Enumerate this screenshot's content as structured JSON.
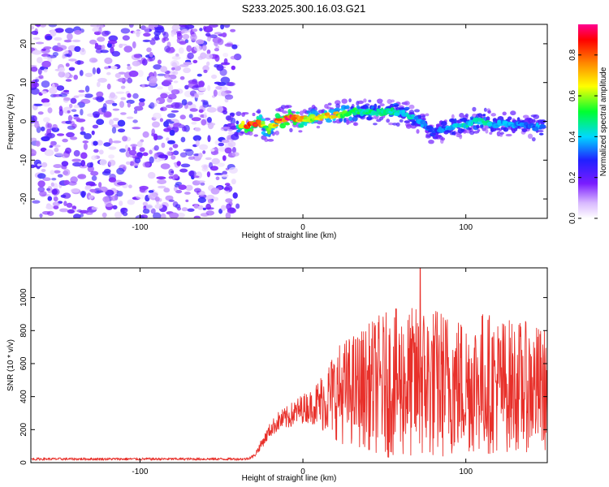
{
  "title": "S233.2025.300.16.03.G21",
  "colors": {
    "snr_line": "#e8302a",
    "axis": "#000000",
    "background": "#ffffff"
  },
  "chart_data": [
    {
      "type": "heatmap",
      "name": "spectrogram",
      "xlabel": "Height of straight line (km)",
      "ylabel": "Frequency (Hz)",
      "xlim": [
        -167,
        150
      ],
      "ylim": [
        -25,
        25
      ],
      "xticks": [
        -100,
        0,
        100
      ],
      "yticks": [
        -20,
        -10,
        0,
        10,
        20
      ],
      "colorbar": {
        "label": "Normalized spectral amplitude",
        "range": [
          0,
          0.95
        ],
        "ticks": [
          0.0,
          0.2,
          0.4,
          0.6,
          0.8
        ],
        "colormap": "rainbow (white-violet-blue-cyan-green-yellow-orange-red-magenta)"
      },
      "noise_region_x": [
        -167,
        -40
      ],
      "noise_amplitude": 0.15,
      "signal_ridge": {
        "x": [
          -40,
          -35,
          -30,
          -25,
          -22,
          -20,
          -15,
          -10,
          -5,
          0,
          5,
          10,
          15,
          20,
          25,
          30,
          35,
          40,
          45,
          50,
          55,
          60,
          65,
          70,
          75,
          78,
          80,
          85,
          90,
          95,
          100,
          105,
          110,
          115,
          120,
          125,
          130,
          135,
          140,
          145,
          148
        ],
        "y": [
          -1,
          -1,
          -0.5,
          -0.5,
          -2.5,
          -1.8,
          0,
          1,
          0.8,
          0.5,
          0.8,
          1.2,
          1.5,
          1.8,
          2,
          2.3,
          2.5,
          2.5,
          2.3,
          2.4,
          2.5,
          2.2,
          1.5,
          0.5,
          -1,
          -2,
          -3,
          -2,
          -1.5,
          -1.5,
          -1,
          0,
          0,
          -0.3,
          -0.8,
          -0.5,
          -0.8,
          -1,
          -1.5,
          -1.5,
          -1.5
        ],
        "peak_amplitude": [
          0.45,
          0.9,
          0.95,
          0.75,
          0.55,
          0.6,
          0.85,
          0.95,
          0.9,
          0.75,
          0.65,
          0.7,
          0.75,
          0.7,
          0.6,
          0.55,
          0.5,
          0.5,
          0.5,
          0.55,
          0.5,
          0.45,
          0.45,
          0.4,
          0.35,
          0.3,
          0.3,
          0.35,
          0.4,
          0.45,
          0.45,
          0.45,
          0.5,
          0.45,
          0.4,
          0.4,
          0.4,
          0.35,
          0.35,
          0.4,
          0.4
        ]
      }
    },
    {
      "type": "line",
      "name": "snr",
      "xlabel": "Height of straight line (km)",
      "ylabel": "SNR (10 * v/v)",
      "xlim": [
        -167,
        150
      ],
      "ylim": [
        0,
        1180
      ],
      "xticks": [
        -100,
        0,
        100
      ],
      "yticks": [
        0,
        200,
        400,
        600,
        800,
        1000
      ],
      "series": [
        {
          "name": "SNR",
          "x": [
            -167,
            -150,
            -130,
            -110,
            -90,
            -70,
            -50,
            -35,
            -30,
            -25,
            -20,
            -15,
            -10,
            -5,
            0,
            5,
            10,
            15,
            20,
            25,
            30,
            35,
            40,
            45,
            50,
            55,
            60,
            65,
            70,
            75,
            80,
            85,
            90,
            95,
            100,
            105,
            110,
            115,
            120,
            125,
            130,
            135,
            140,
            145,
            150
          ],
          "y_mean": [
            22,
            22,
            22,
            22,
            22,
            22,
            22,
            22,
            40,
            120,
            200,
            250,
            270,
            300,
            330,
            340,
            360,
            390,
            420,
            430,
            440,
            450,
            460,
            470,
            470,
            480,
            480,
            480,
            480,
            490,
            480,
            480,
            480,
            470,
            470,
            480,
            490,
            480,
            470,
            470,
            470,
            460,
            460,
            450,
            440
          ],
          "y_spread": [
            8,
            8,
            8,
            8,
            8,
            8,
            8,
            8,
            12,
            30,
            45,
            60,
            70,
            80,
            90,
            100,
            160,
            220,
            280,
            320,
            340,
            360,
            380,
            420,
            440,
            450,
            460,
            460,
            470,
            480,
            470,
            460,
            450,
            430,
            420,
            430,
            440,
            430,
            420,
            410,
            400,
            400,
            390,
            380,
            370
          ],
          "y_max_observed": 1180,
          "x_at_max": 72
        }
      ]
    }
  ]
}
